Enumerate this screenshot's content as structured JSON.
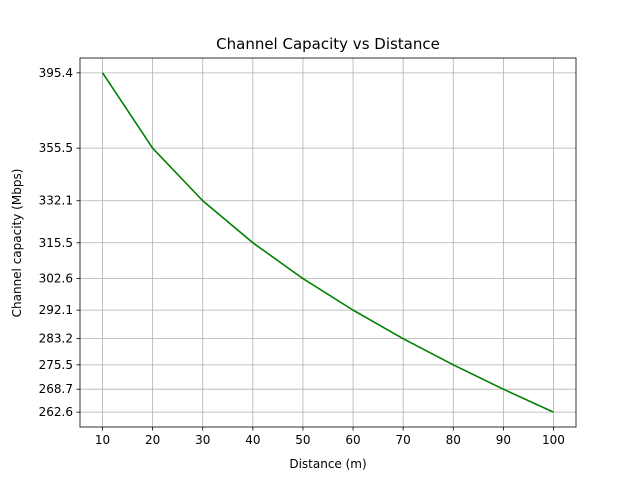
{
  "chart_data": {
    "type": "line",
    "title": "Channel Capacity vs Distance",
    "xlabel": "Distance (m)",
    "ylabel": "Channel capacity (Mbps)",
    "x": [
      10,
      20,
      30,
      40,
      50,
      60,
      70,
      80,
      90,
      100
    ],
    "series": [
      {
        "values": [
          395.4,
          355.5,
          332.1,
          315.5,
          302.6,
          292.1,
          283.2,
          275.5,
          268.7,
          262.6
        ],
        "color": "#008000"
      }
    ],
    "xticks": [
      10,
      20,
      30,
      40,
      50,
      60,
      70,
      80,
      90,
      100
    ],
    "yticks": [
      395.4,
      355.5,
      332.1,
      315.5,
      302.6,
      292.1,
      283.2,
      275.5,
      268.7,
      262.6
    ],
    "yscale": "log-spaced ticks",
    "xlim": [
      5.5,
      104.5
    ],
    "grid": true
  }
}
